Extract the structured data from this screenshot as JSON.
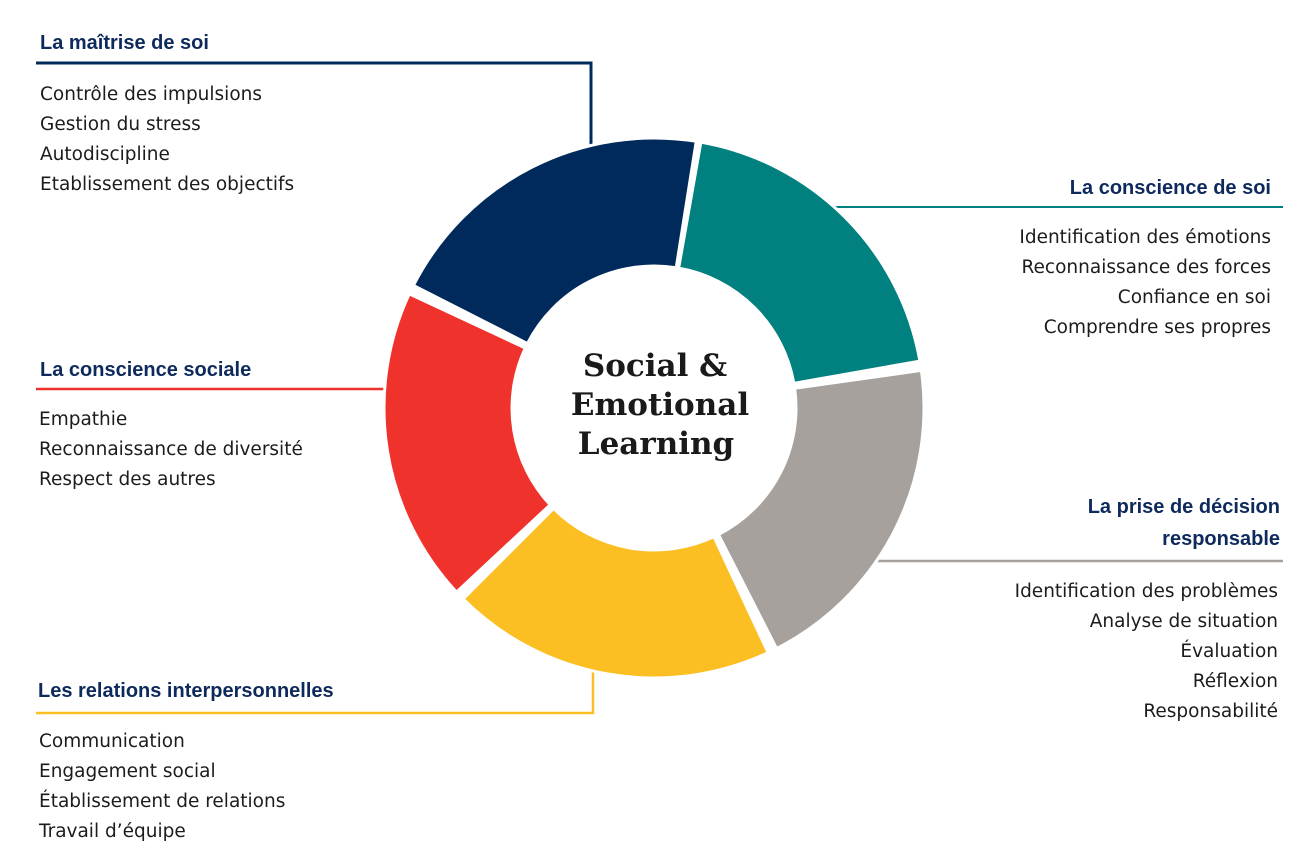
{
  "center": {
    "lines": [
      "Social &",
      "Emotional",
      "Learning"
    ]
  },
  "colors": {
    "navy": "#002a5c",
    "teal": "#00807f",
    "gray": "#a6a19d",
    "yellow": "#fbbf24",
    "red": "#f0322d",
    "heading_text": "#0e2a5c"
  },
  "competencies": [
    {
      "key": "self_management",
      "color": "navy",
      "title": "La maîtrise de soi",
      "items": [
        "Contrôle des impulsions",
        "Gestion du stress",
        "Autodiscipline",
        "Etablissement des objectifs"
      ]
    },
    {
      "key": "self_awareness",
      "color": "teal",
      "title": "La conscience de soi",
      "items": [
        "Identification des émotions",
        "Reconnaissance des forces",
        "Confiance en soi",
        "Comprendre ses propres"
      ]
    },
    {
      "key": "social_awareness",
      "color": "red",
      "title": "La conscience sociale",
      "items": [
        "Empathie",
        "Reconnaissance de diversité",
        "Respect des autres"
      ]
    },
    {
      "key": "decision_making",
      "color": "gray",
      "title_lines": [
        "La prise de décision",
        "responsable"
      ],
      "items": [
        "Identification des problèmes",
        "Analyse de situation",
        "Évaluation",
        "Réflexion",
        "Responsabilité"
      ]
    },
    {
      "key": "relationship_skills",
      "color": "yellow",
      "title": "Les relations interpersonnelles",
      "items": [
        "Communication",
        "Engagement social",
        "Établissement de relations",
        "Travail d’équipe"
      ]
    }
  ]
}
